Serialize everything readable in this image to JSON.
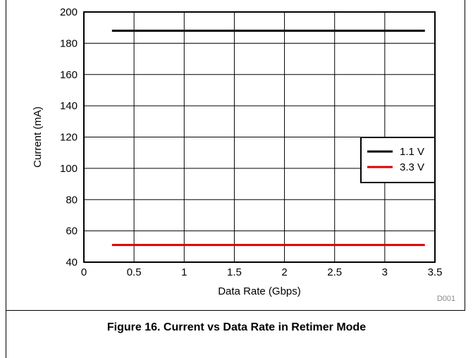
{
  "chart_data": {
    "type": "line",
    "title": "",
    "xlabel": "Data Rate (Gbps)",
    "ylabel": "Current (mA)",
    "xlim": [
      0,
      3.5
    ],
    "ylim": [
      40,
      200
    ],
    "xticks": [
      0,
      0.5,
      1,
      1.5,
      2,
      2.5,
      3,
      3.5
    ],
    "xtick_labels": [
      "0",
      "0.5",
      "1",
      "1.5",
      "2",
      "2.5",
      "3",
      "3.5"
    ],
    "yticks": [
      40,
      60,
      80,
      100,
      120,
      140,
      160,
      180,
      200
    ],
    "ytick_labels": [
      "40",
      "60",
      "80",
      "100",
      "120",
      "140",
      "160",
      "180",
      "200"
    ],
    "grid": true,
    "legend_position": "middle-right",
    "series": [
      {
        "name": "1.1 V",
        "color": "#000000",
        "x": [
          0.28,
          3.4
        ],
        "y": [
          188,
          188
        ]
      },
      {
        "name": "3.3 V",
        "color": "#e00000",
        "x": [
          0.28,
          3.4
        ],
        "y": [
          51,
          51
        ]
      }
    ],
    "annotation": "D001"
  },
  "caption": "Figure 16. Current vs Data Rate in Retimer Mode"
}
